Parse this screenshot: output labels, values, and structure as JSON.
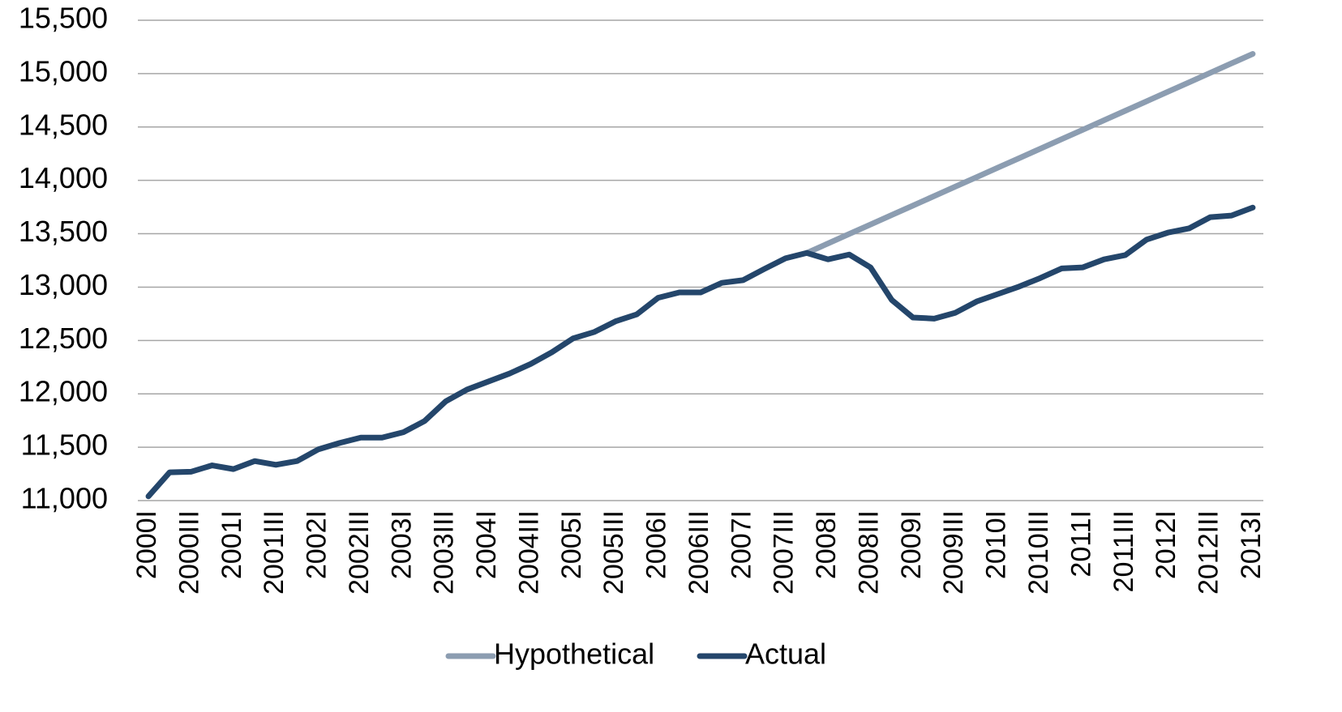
{
  "chart_data": {
    "type": "line",
    "categories": [
      "2000I",
      null,
      "2000III",
      null,
      "2001I",
      null,
      "2001III",
      null,
      "2002I",
      null,
      "2002III",
      null,
      "2003I",
      null,
      "2003III",
      null,
      "2004I",
      null,
      "2004III",
      null,
      "2005I",
      null,
      "2005III",
      null,
      "2006I",
      null,
      "2006III",
      null,
      "2007I",
      null,
      "2007III",
      null,
      "2008I",
      null,
      "2008III",
      null,
      "2009I",
      null,
      "2009III",
      null,
      "2010I",
      null,
      "2010III",
      null,
      "2011I",
      null,
      "2011III",
      null,
      "2012I",
      null,
      "2012III",
      null,
      "2013I"
    ],
    "series": [
      {
        "name": "Hypothetical",
        "color": "#8c9db1",
        "values": [
          null,
          null,
          null,
          null,
          null,
          null,
          null,
          null,
          null,
          null,
          null,
          null,
          null,
          null,
          null,
          null,
          null,
          null,
          null,
          null,
          null,
          null,
          null,
          null,
          null,
          null,
          null,
          null,
          null,
          null,
          null,
          13320,
          13409,
          13498,
          13586,
          13675,
          13764,
          13853,
          13942,
          14030,
          14119,
          14208,
          14297,
          14386,
          14474,
          14563,
          14652,
          14741,
          14830,
          14918,
          15007,
          15096,
          15185
        ]
      },
      {
        "name": "Actual",
        "color": "#24466b",
        "values": [
          11040,
          11265,
          11270,
          11330,
          11295,
          11370,
          11335,
          11370,
          11480,
          11540,
          11590,
          11590,
          11640,
          11745,
          11930,
          12040,
          12115,
          12190,
          12280,
          12390,
          12520,
          12580,
          12680,
          12745,
          12900,
          12950,
          12950,
          13040,
          13065,
          13170,
          13270,
          13320,
          13260,
          13305,
          13185,
          12880,
          12715,
          12705,
          12760,
          12865,
          12935,
          13005,
          13085,
          13175,
          13185,
          13260,
          13300,
          13445,
          13510,
          13550,
          13655,
          13670,
          13745
        ]
      }
    ],
    "ylim": [
      11000,
      15500
    ],
    "yticks": [
      {
        "value": 11000,
        "label": "11,000"
      },
      {
        "value": 11500,
        "label": "11,500"
      },
      {
        "value": 12000,
        "label": "12,000"
      },
      {
        "value": 12500,
        "label": "12,500"
      },
      {
        "value": 13000,
        "label": "13,000"
      },
      {
        "value": 13500,
        "label": "13,500"
      },
      {
        "value": 14000,
        "label": "14,000"
      },
      {
        "value": 14500,
        "label": "14,500"
      },
      {
        "value": 15000,
        "label": "15,000"
      },
      {
        "value": 15500,
        "label": "15,500"
      }
    ],
    "grid": true,
    "legend": "bottom"
  }
}
